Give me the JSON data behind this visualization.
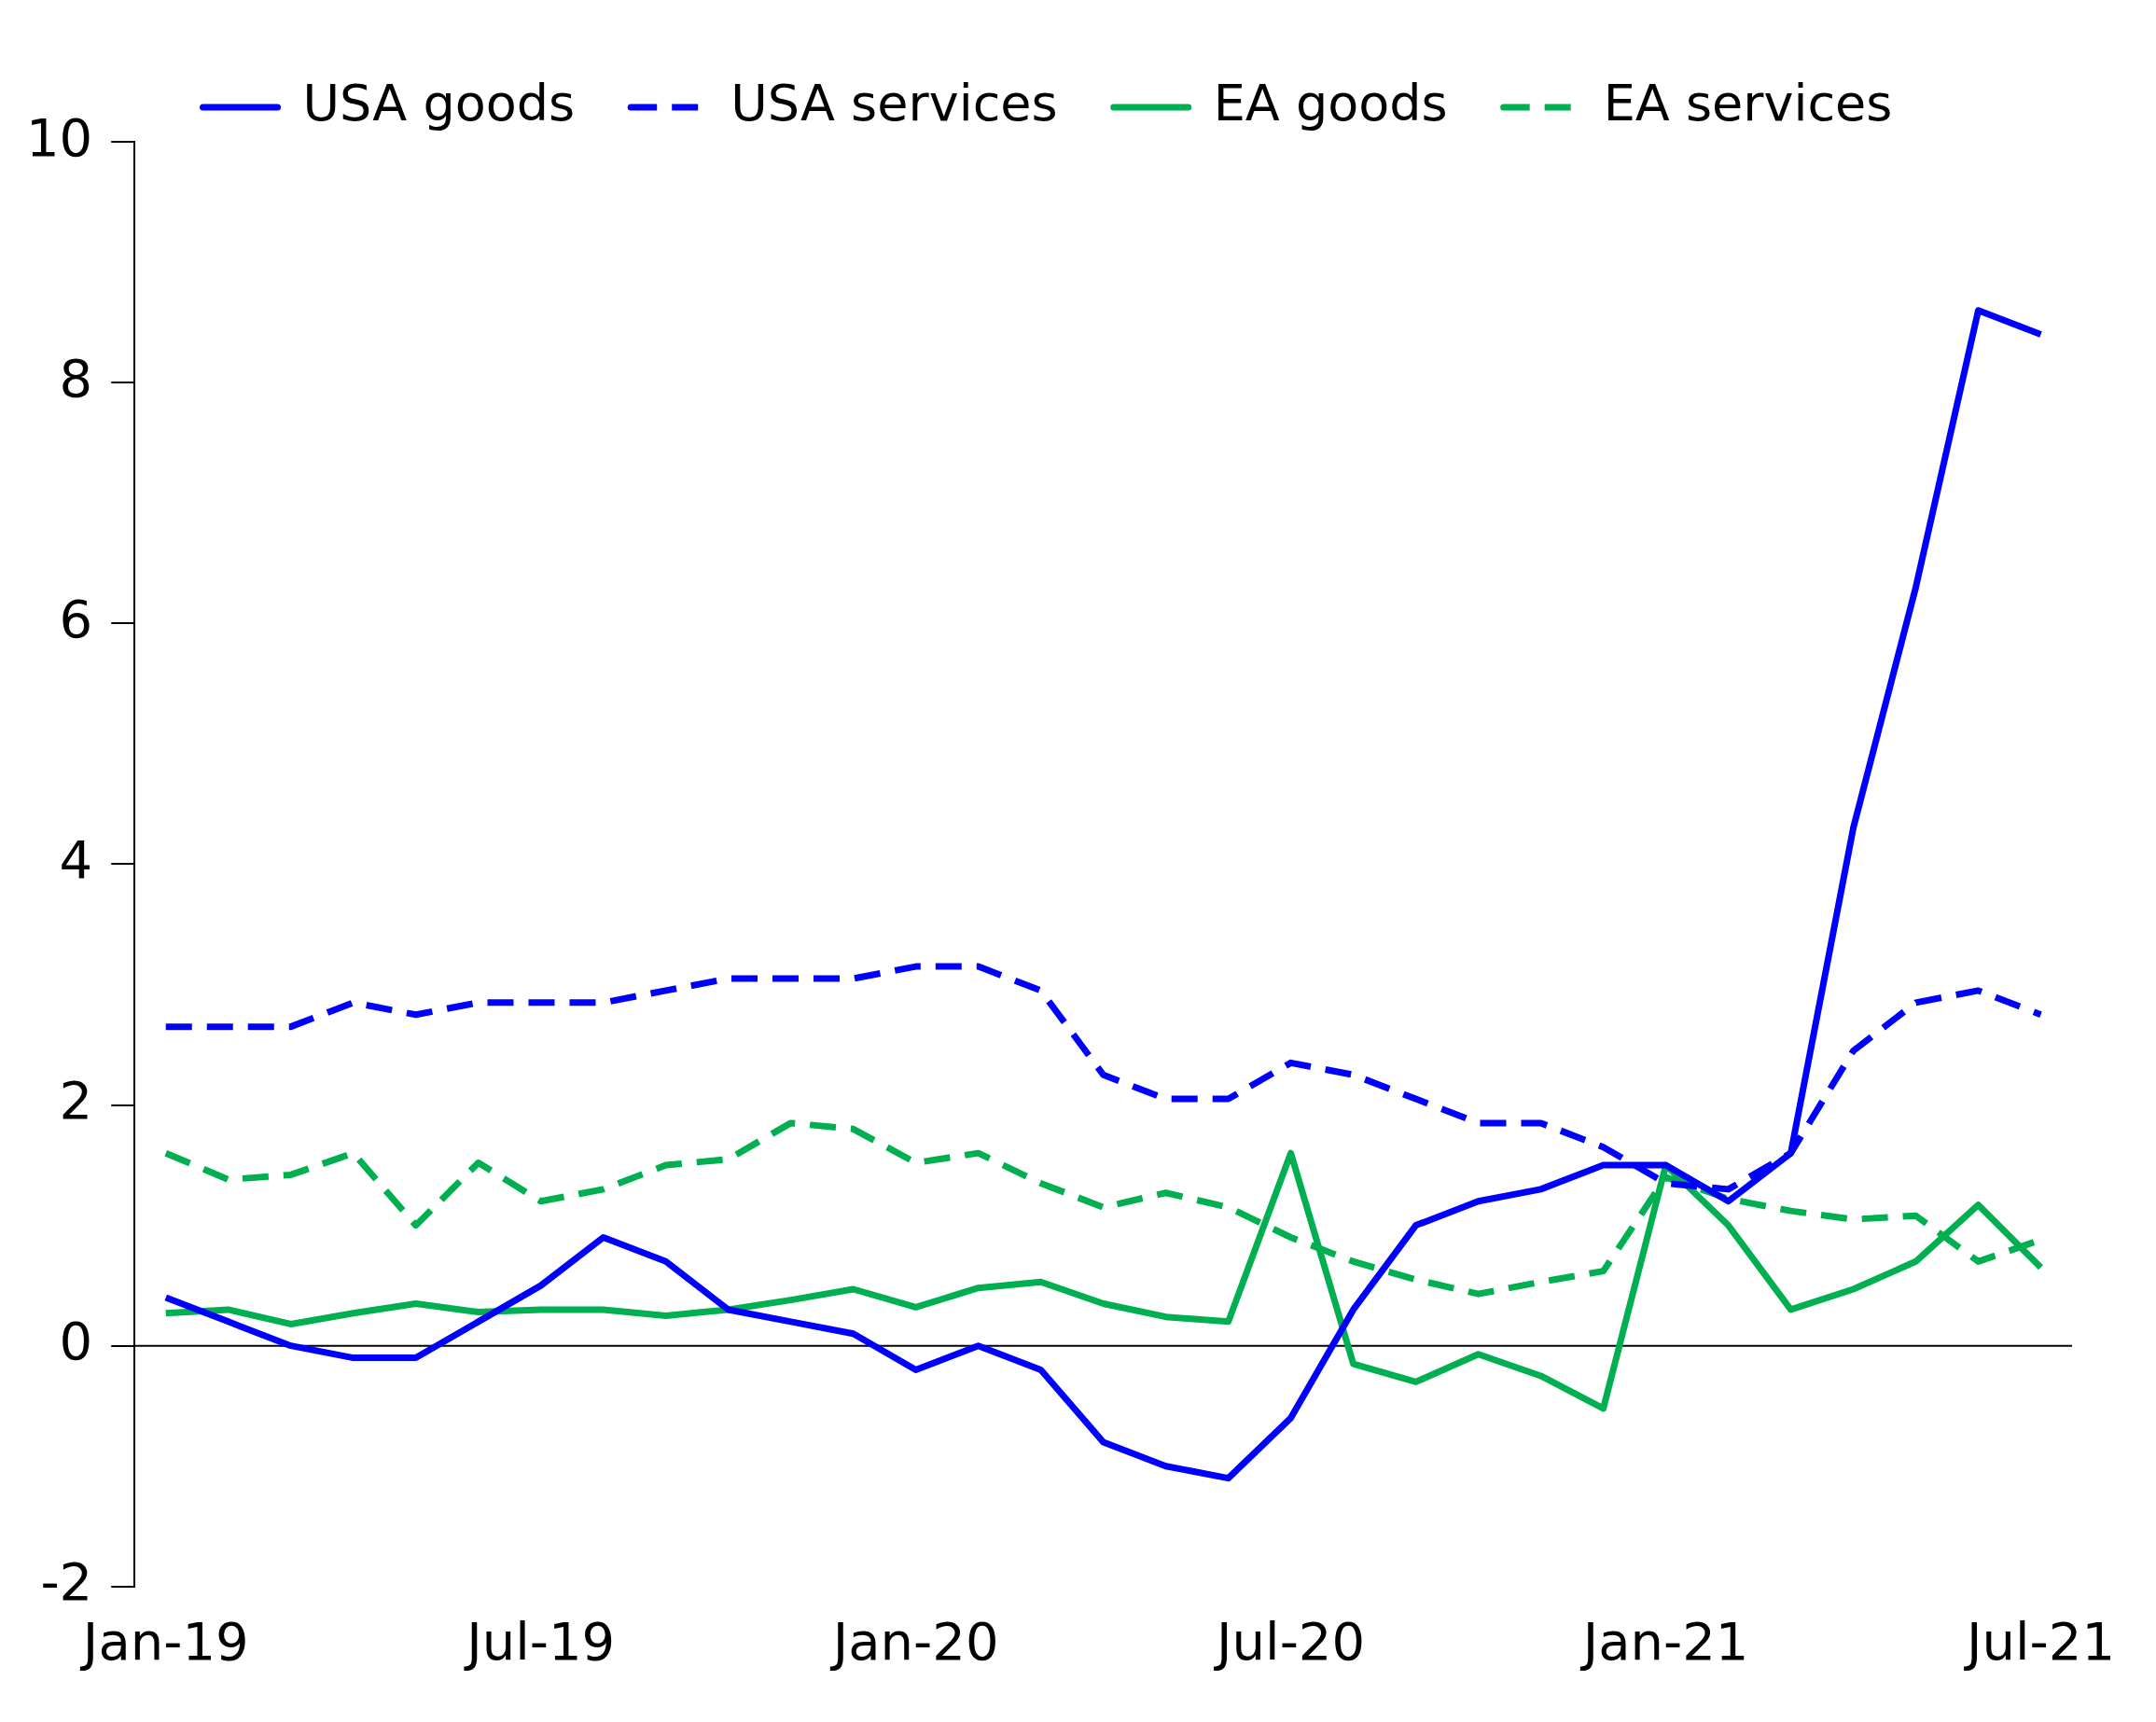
{
  "chart_data": {
    "type": "line",
    "categories": [
      "Jan-19",
      null,
      null,
      null,
      null,
      null,
      "Jul-19",
      null,
      null,
      null,
      null,
      null,
      "Jan-20",
      null,
      null,
      null,
      null,
      null,
      "Jul-20",
      null,
      null,
      null,
      null,
      null,
      "Jan-21",
      null,
      null,
      null,
      null,
      null,
      "Jul-21"
    ],
    "series": [
      {
        "name": "USA goods",
        "color": "#0000ff",
        "line_style": "solid",
        "values": [
          0.4,
          0.2,
          0.0,
          -0.1,
          -0.1,
          0.2,
          0.5,
          0.9,
          0.7,
          0.3,
          0.2,
          0.1,
          -0.2,
          0.0,
          -0.2,
          -0.8,
          -1.0,
          -1.1,
          -0.6,
          0.3,
          1.0,
          1.2,
          1.3,
          1.5,
          1.5,
          1.2,
          1.6,
          4.3,
          6.3,
          8.6,
          8.4
        ]
      },
      {
        "name": "USA services",
        "color": "#0000ff",
        "line_style": "dashed",
        "values": [
          2.65,
          2.65,
          2.65,
          2.85,
          2.75,
          2.85,
          2.85,
          2.85,
          2.95,
          3.05,
          3.05,
          3.05,
          3.15,
          3.15,
          2.95,
          2.25,
          2.05,
          2.05,
          2.35,
          2.25,
          2.05,
          1.85,
          1.85,
          1.65,
          1.35,
          1.3,
          1.6,
          2.45,
          2.85,
          2.95,
          2.75
        ]
      },
      {
        "name": "EA goods",
        "color": "#00b050",
        "line_style": "solid",
        "values": [
          0.27,
          0.3,
          0.18,
          0.27,
          0.35,
          0.28,
          0.3,
          0.3,
          0.25,
          0.3,
          0.38,
          0.47,
          0.32,
          0.48,
          0.53,
          0.35,
          0.24,
          0.2,
          1.6,
          -0.15,
          -0.3,
          -0.07,
          -0.25,
          -0.52,
          1.5,
          1.0,
          0.3,
          0.47,
          0.7,
          1.17,
          0.65
        ]
      },
      {
        "name": "EA services",
        "color": "#00b050",
        "line_style": "dashed",
        "values": [
          1.6,
          1.38,
          1.42,
          1.6,
          1.0,
          1.52,
          1.2,
          1.3,
          1.5,
          1.55,
          1.85,
          1.8,
          1.52,
          1.6,
          1.35,
          1.15,
          1.27,
          1.15,
          0.9,
          0.7,
          0.55,
          0.43,
          0.53,
          0.62,
          1.4,
          1.22,
          1.12,
          1.05,
          1.08,
          0.7,
          0.88
        ]
      }
    ],
    "ylim": [
      -2,
      10
    ],
    "yticks": [
      -2,
      0,
      2,
      4,
      6,
      8,
      10
    ],
    "grid": false,
    "legend": "top",
    "marker": "none",
    "ref_lines": [
      {
        "axis": "y",
        "value": 0,
        "color": "#000000"
      }
    ]
  }
}
